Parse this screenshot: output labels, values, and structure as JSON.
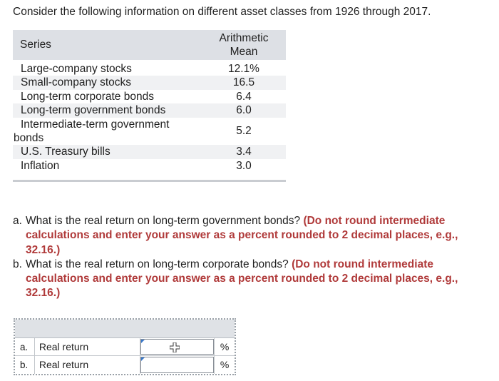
{
  "intro": "Consider the following information on different asset classes from 1926 through 2017.",
  "table": {
    "header_series": "Series",
    "header_mean_line1": "Arithmetic",
    "header_mean_line2": "Mean",
    "rows": [
      {
        "series": "Large-company stocks",
        "mean": "12.1%"
      },
      {
        "series": "Small-company stocks",
        "mean": "16.5"
      },
      {
        "series": "Long-term corporate bonds",
        "mean": "6.4"
      },
      {
        "series": "Long-term government bonds",
        "mean": "6.0"
      },
      {
        "series_line1": "Intermediate-term government",
        "series_line2": "bonds",
        "mean": "5.2"
      },
      {
        "series": "U.S. Treasury bills",
        "mean": "3.4"
      },
      {
        "series": "Inflation",
        "mean": "3.0"
      }
    ]
  },
  "questions": [
    {
      "label": "a.",
      "text": "What is the real return on long-term government bonds?",
      "instruction": "(Do not round intermediate calculations and enter your answer as a percent rounded to 2 decimal places, e.g., 32.16.)"
    },
    {
      "label": "b.",
      "text": "What is the real return on long-term corporate bonds?",
      "instruction": "(Do not round intermediate calculations and enter your answer as a percent rounded to 2 decimal places, e.g., 32.16.)"
    }
  ],
  "answers": [
    {
      "letter": "a.",
      "label": "Real return",
      "value": "",
      "unit": "%"
    },
    {
      "letter": "b.",
      "label": "Real return",
      "value": "",
      "unit": "%"
    }
  ]
}
